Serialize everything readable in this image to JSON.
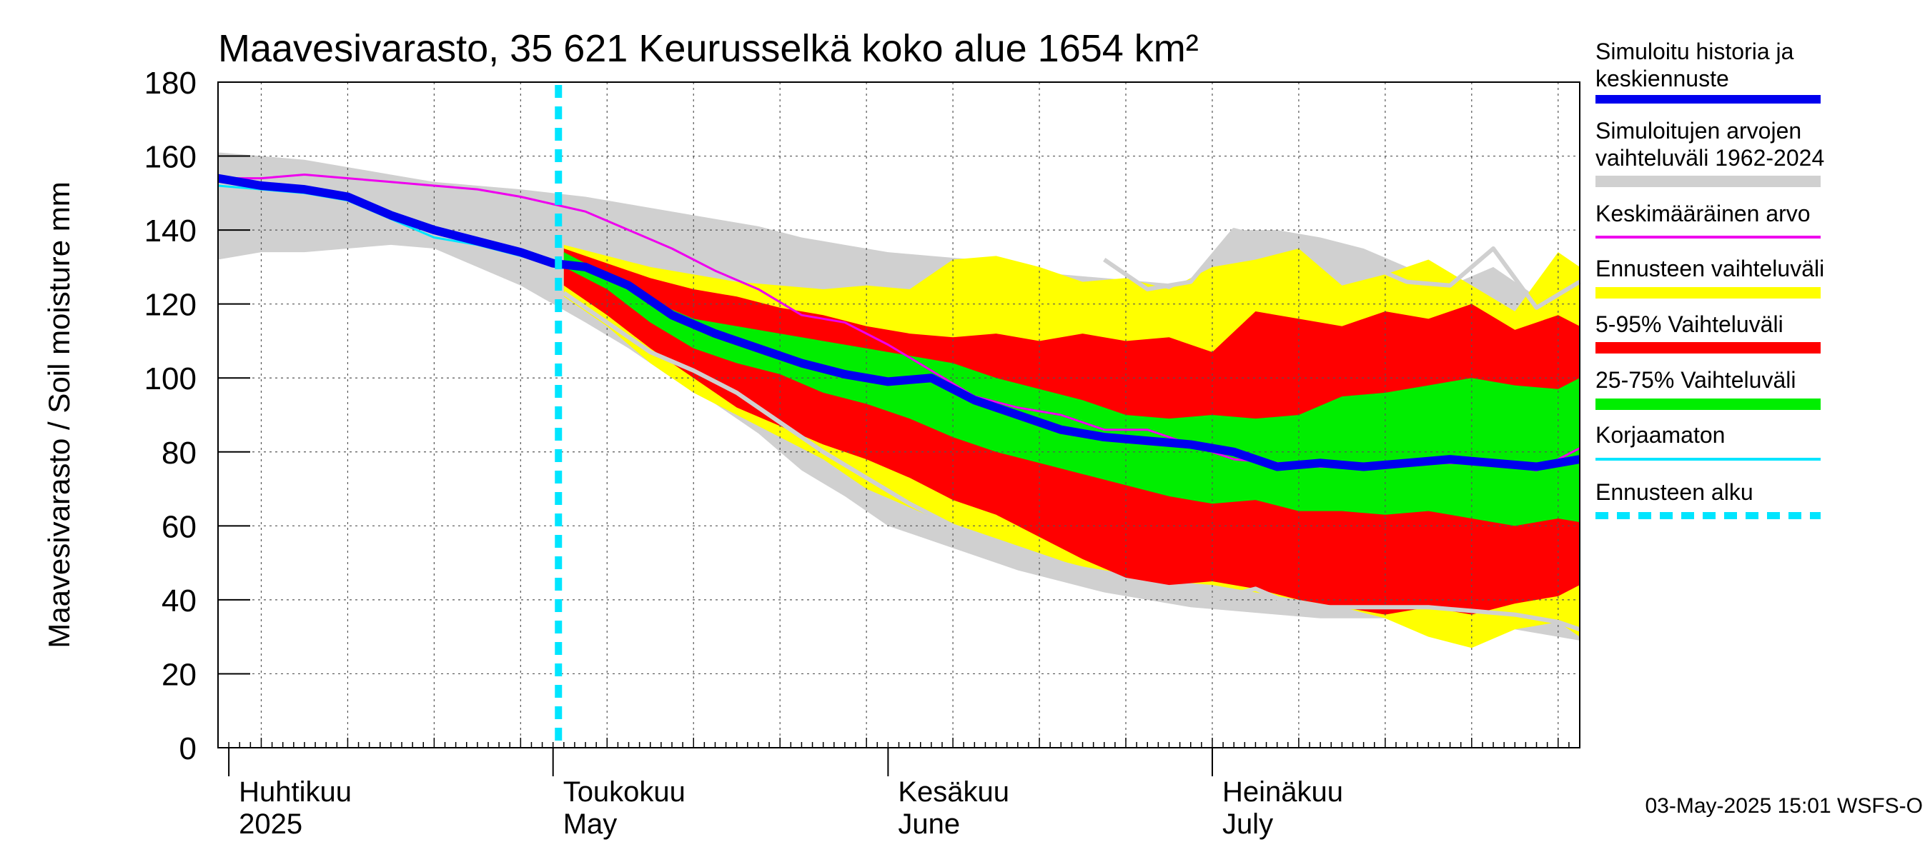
{
  "chart_data": {
    "type": "area",
    "title": "Maavesivarasto, 35 621 Keurusselkä koko alue 1654 km²",
    "ylabel": "Maavesivarasto / Soil moisture   mm",
    "ylim": [
      0,
      180
    ],
    "yticks": [
      0,
      20,
      40,
      60,
      80,
      100,
      120,
      140,
      160,
      180
    ],
    "xlim": [
      0,
      126
    ],
    "x_unit": "days since 2025-03-30",
    "forecast_start_day": 31.5,
    "months": [
      {
        "fi": "Huhtikuu",
        "en": "2025",
        "day": 2
      },
      {
        "fi": "Toukokuu",
        "en": "May",
        "day": 32
      },
      {
        "fi": "Kesäkuu",
        "en": "June",
        "day": 63
      },
      {
        "fi": "Heinäkuu",
        "en": "July",
        "day": 93
      }
    ],
    "timestamp": "03-May-2025 15:01 WSFS-O",
    "legend": [
      {
        "label": "Simuloitu historia ja keskiennuste",
        "color": "#0000ee",
        "style": "thick"
      },
      {
        "label": "Simuloitujen arvojen vaihteluväli 1962-2024",
        "color": "#d0d0d0",
        "style": "band"
      },
      {
        "label": "Keskimääräinen arvo",
        "color": "#ee00ee",
        "style": "line"
      },
      {
        "label": "Ennusteen vaihteluväli",
        "color": "#ffff00",
        "style": "band"
      },
      {
        "label": "5-95% Vaihteluväli",
        "color": "#ff0000",
        "style": "band"
      },
      {
        "label": "25-75% Vaihteluväli",
        "color": "#00ee00",
        "style": "band"
      },
      {
        "label": "Korjaamaton",
        "color": "#00e5ff",
        "style": "line"
      },
      {
        "label": "Ennusteen alku",
        "color": "#00e5ff",
        "style": "dashed"
      }
    ],
    "series": [
      {
        "name": "Simuloitujen arvojen vaihteluväli 1962-2024",
        "kind": "band",
        "color": "#d0d0d0",
        "x": [
          0,
          4,
          8,
          12,
          16,
          20,
          24,
          28,
          31,
          34,
          38,
          42,
          46,
          50,
          54,
          58,
          62,
          66,
          70,
          74,
          78,
          82,
          86,
          90,
          94,
          98,
          102,
          106,
          110,
          114,
          118,
          122,
          126
        ],
        "upper": [
          161,
          160,
          159,
          157,
          155,
          153,
          152,
          151,
          150,
          149,
          147,
          145,
          143,
          141,
          138,
          136,
          134,
          133,
          132,
          131,
          128,
          127,
          126,
          125,
          140,
          140,
          138,
          135,
          130,
          125,
          130,
          122,
          125
        ],
        "lower": [
          132,
          134,
          134,
          135,
          136,
          135,
          130,
          125,
          120,
          115,
          108,
          100,
          93,
          85,
          75,
          68,
          60,
          56,
          52,
          48,
          45,
          42,
          40,
          38,
          37,
          36,
          35,
          35,
          35,
          35,
          33,
          31,
          29
        ]
      },
      {
        "name": "Ennusteen vaihteluväli",
        "kind": "band",
        "color": "#ffff00",
        "x": [
          32,
          36,
          40,
          44,
          48,
          52,
          56,
          60,
          64,
          68,
          72,
          76,
          80,
          84,
          88,
          92,
          96,
          100,
          104,
          108,
          112,
          116,
          120,
          124,
          126
        ],
        "upper": [
          136,
          133,
          130,
          128,
          126,
          125,
          124,
          125,
          124,
          132,
          133,
          130,
          126,
          127,
          124,
          130,
          132,
          135,
          125,
          128,
          132,
          125,
          118,
          134,
          130
        ],
        "lower": [
          122,
          114,
          104,
          96,
          90,
          84,
          78,
          70,
          65,
          60,
          56,
          52,
          49,
          47,
          45,
          44,
          42,
          40,
          38,
          35,
          30,
          27,
          32,
          34,
          30
        ]
      },
      {
        "name": "5-95% Vaihteluväli",
        "kind": "band",
        "color": "#ff0000",
        "x": [
          32,
          36,
          40,
          44,
          48,
          52,
          56,
          60,
          64,
          68,
          72,
          76,
          80,
          84,
          88,
          92,
          96,
          100,
          104,
          108,
          112,
          116,
          120,
          124,
          126
        ],
        "upper": [
          135,
          131,
          127,
          124,
          122,
          119,
          117,
          114,
          112,
          111,
          112,
          110,
          112,
          110,
          111,
          107,
          118,
          116,
          114,
          118,
          116,
          120,
          113,
          117,
          114
        ],
        "lower": [
          125,
          117,
          108,
          100,
          92,
          87,
          82,
          78,
          73,
          67,
          63,
          57,
          51,
          46,
          44,
          45,
          43,
          40,
          38,
          36,
          38,
          36,
          39,
          41,
          44
        ]
      },
      {
        "name": "25-75% Vaihteluväli",
        "kind": "band",
        "color": "#00ee00",
        "x": [
          32,
          36,
          40,
          44,
          48,
          52,
          56,
          60,
          64,
          68,
          72,
          76,
          80,
          84,
          88,
          92,
          96,
          100,
          104,
          108,
          112,
          116,
          120,
          124,
          126
        ],
        "upper": [
          134,
          128,
          121,
          116,
          114,
          112,
          110,
          108,
          106,
          104,
          100,
          97,
          94,
          90,
          89,
          90,
          89,
          90,
          95,
          96,
          98,
          100,
          98,
          97,
          100
        ],
        "lower": [
          130,
          124,
          115,
          108,
          104,
          101,
          96,
          93,
          89,
          84,
          80,
          77,
          74,
          71,
          68,
          66,
          67,
          64,
          64,
          63,
          64,
          62,
          60,
          62,
          61
        ]
      },
      {
        "name": "Simuloitujen arvojen vaihteluväli (ennuste min)",
        "kind": "line",
        "color": "#d0d0d0",
        "x": [
          32,
          36,
          40,
          44,
          48,
          52,
          56,
          60,
          64,
          68,
          72,
          76,
          80,
          84,
          88,
          92,
          96,
          100,
          104,
          108,
          112,
          116,
          120,
          124,
          126
        ],
        "y": [
          123,
          115,
          107,
          102,
          96,
          88,
          80,
          73,
          66,
          60,
          56,
          52,
          48,
          44,
          42,
          40,
          43,
          38,
          38,
          38,
          38,
          37,
          36,
          34,
          32
        ]
      },
      {
        "name": "Simuloitujen arvojen vaihteluväli (ennuste max)",
        "kind": "line",
        "color": "#d0d0d0",
        "x": [
          82,
          86,
          90,
          94,
          98,
          102,
          106,
          110,
          114,
          118,
          122,
          126
        ],
        "y": [
          132,
          124,
          126,
          140,
          137,
          135,
          131,
          126,
          125,
          135,
          119,
          126
        ]
      },
      {
        "name": "Keskimääräinen arvo",
        "kind": "line",
        "color": "#ee00ee",
        "x": [
          0,
          4,
          8,
          12,
          16,
          20,
          24,
          28,
          31,
          34,
          38,
          42,
          46,
          50,
          54,
          58,
          62,
          66,
          70,
          74,
          78,
          82,
          86,
          90,
          94,
          98,
          102,
          106,
          110,
          114,
          118,
          122,
          126
        ],
        "y": [
          154,
          154,
          155,
          154,
          153,
          152,
          151,
          149,
          147,
          145,
          140,
          135,
          129,
          124,
          117,
          115,
          109,
          102,
          95,
          92,
          90,
          86,
          86,
          82,
          78,
          77,
          76,
          76,
          77,
          77,
          77,
          75,
          81
        ]
      },
      {
        "name": "Korjaamaton",
        "kind": "line",
        "color": "#00e5ff",
        "x": [
          0,
          4,
          8,
          12,
          16,
          20,
          24,
          28,
          31
        ],
        "y": [
          152,
          151,
          150,
          148,
          143,
          138,
          136,
          133,
          131
        ]
      },
      {
        "name": "Simuloitu historia ja keskiennuste",
        "kind": "line",
        "color": "#0000ee",
        "x": [
          0,
          4,
          8,
          12,
          16,
          20,
          24,
          28,
          31,
          34,
          38,
          42,
          46,
          50,
          54,
          58,
          62,
          66,
          70,
          74,
          78,
          82,
          86,
          90,
          94,
          98,
          102,
          106,
          110,
          114,
          118,
          122,
          126
        ],
        "y": [
          154,
          152,
          151,
          149,
          144,
          140,
          137,
          134,
          131,
          130,
          125,
          117,
          112,
          108,
          104,
          101,
          99,
          100,
          94,
          90,
          86,
          84,
          83,
          82,
          80,
          76,
          77,
          76,
          77,
          78,
          77,
          76,
          78
        ]
      }
    ]
  }
}
